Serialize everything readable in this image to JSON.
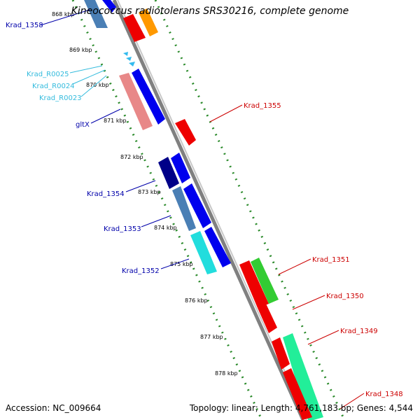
{
  "title": "Kineococcus radiotolerans SRS30216, complete genome",
  "footer": {
    "accession": "Accession: NC_009664",
    "summary": "Topology: linear; Length: 4,761,183 bp; Genes: 4,544"
  },
  "ticks": [
    "868 kbp",
    "869 kbp",
    "870 kbp",
    "871 kbp",
    "872 kbp",
    "873 kbp",
    "874 kbp",
    "875 kbp",
    "876 kbp",
    "877 kbp",
    "878 kbp"
  ],
  "left_labels": [
    {
      "text": "Krad_1358",
      "color": "#0000aa"
    },
    {
      "text": "Krad_R0025",
      "color": "#33bbdd"
    },
    {
      "text": "Krad_R0024",
      "color": "#33bbdd"
    },
    {
      "text": "Krad_R0023",
      "color": "#33bbdd"
    },
    {
      "text": "gltX",
      "color": "#0000aa"
    },
    {
      "text": "Krad_1354",
      "color": "#0000aa"
    },
    {
      "text": "Krad_1353",
      "color": "#0000aa"
    },
    {
      "text": "Krad_1352",
      "color": "#0000aa"
    }
  ],
  "right_labels": [
    {
      "text": "Krad_1355",
      "color": "#cc0000"
    },
    {
      "text": "Krad_1351",
      "color": "#cc0000"
    },
    {
      "text": "Krad_1350",
      "color": "#cc0000"
    },
    {
      "text": "Krad_1349",
      "color": "#cc0000"
    },
    {
      "text": "Krad_1348",
      "color": "#cc0000"
    }
  ],
  "colors": {
    "backbone": "#888888",
    "dotted_track": "#2a8a2a",
    "forward_gene": "#0000ee",
    "reverse_gene": "#ee0000"
  }
}
